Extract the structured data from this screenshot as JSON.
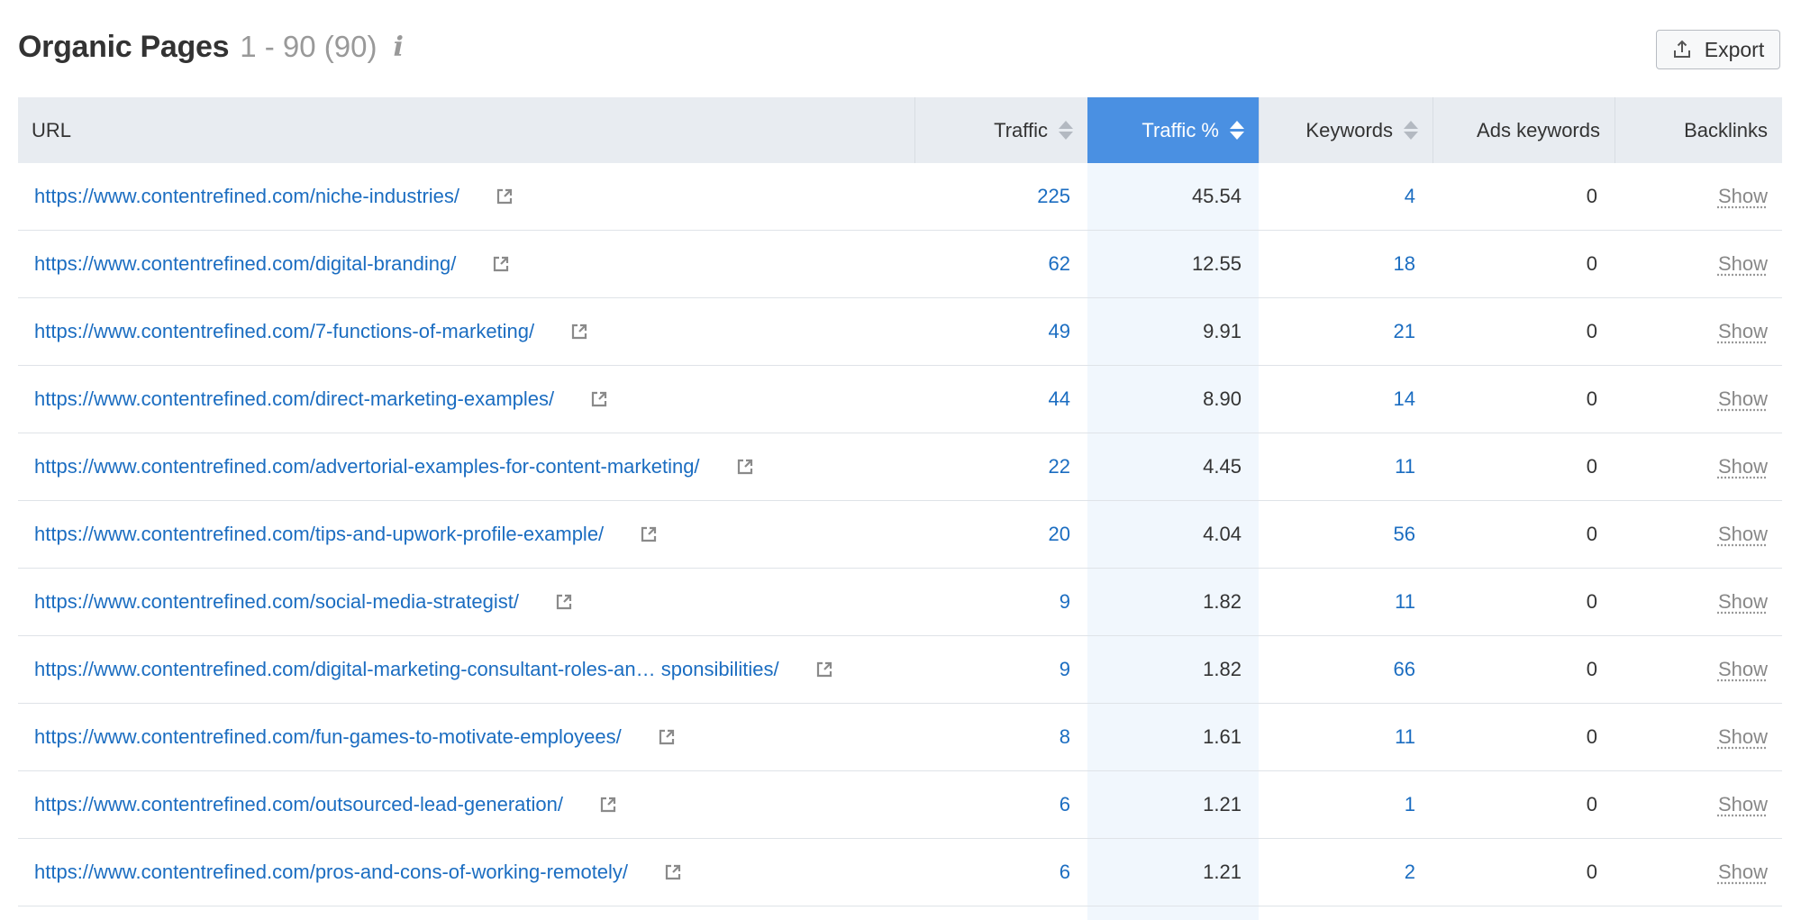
{
  "header": {
    "title": "Organic Pages",
    "range": "1 - 90 (90)",
    "info_icon": "i"
  },
  "toolbar": {
    "export_label": "Export",
    "export_icon": "upload-icon"
  },
  "table": {
    "columns": {
      "url": "URL",
      "traffic": "Traffic",
      "traffic_pct": "Traffic %",
      "keywords": "Keywords",
      "ads_keywords": "Ads keywords",
      "backlinks": "Backlinks"
    },
    "active_sort": "traffic_pct",
    "rows": [
      {
        "url": "https://www.contentrefined.com/niche-industries/",
        "traffic": "225",
        "traffic_pct": "45.54",
        "keywords": "4",
        "ads_keywords": "0",
        "backlinks": "Show"
      },
      {
        "url": "https://www.contentrefined.com/digital-branding/",
        "traffic": "62",
        "traffic_pct": "12.55",
        "keywords": "18",
        "ads_keywords": "0",
        "backlinks": "Show"
      },
      {
        "url": "https://www.contentrefined.com/7-functions-of-marketing/",
        "traffic": "49",
        "traffic_pct": "9.91",
        "keywords": "21",
        "ads_keywords": "0",
        "backlinks": "Show"
      },
      {
        "url": "https://www.contentrefined.com/direct-marketing-examples/",
        "traffic": "44",
        "traffic_pct": "8.90",
        "keywords": "14",
        "ads_keywords": "0",
        "backlinks": "Show"
      },
      {
        "url": "https://www.contentrefined.com/advertorial-examples-for-content-marketing/",
        "traffic": "22",
        "traffic_pct": "4.45",
        "keywords": "11",
        "ads_keywords": "0",
        "backlinks": "Show"
      },
      {
        "url": "https://www.contentrefined.com/tips-and-upwork-profile-example/",
        "traffic": "20",
        "traffic_pct": "4.04",
        "keywords": "56",
        "ads_keywords": "0",
        "backlinks": "Show"
      },
      {
        "url": "https://www.contentrefined.com/social-media-strategist/",
        "traffic": "9",
        "traffic_pct": "1.82",
        "keywords": "11",
        "ads_keywords": "0",
        "backlinks": "Show"
      },
      {
        "url": "https://www.contentrefined.com/digital-marketing-consultant-roles-an… sponsibilities/",
        "traffic": "9",
        "traffic_pct": "1.82",
        "keywords": "66",
        "ads_keywords": "0",
        "backlinks": "Show"
      },
      {
        "url": "https://www.contentrefined.com/fun-games-to-motivate-employees/",
        "traffic": "8",
        "traffic_pct": "1.61",
        "keywords": "11",
        "ads_keywords": "0",
        "backlinks": "Show"
      },
      {
        "url": "https://www.contentrefined.com/outsourced-lead-generation/",
        "traffic": "6",
        "traffic_pct": "1.21",
        "keywords": "1",
        "ads_keywords": "0",
        "backlinks": "Show"
      },
      {
        "url": "https://www.contentrefined.com/pros-and-cons-of-working-remotely/",
        "traffic": "6",
        "traffic_pct": "1.21",
        "keywords": "2",
        "ads_keywords": "0",
        "backlinks": "Show"
      }
    ]
  },
  "colors": {
    "link": "#1b6dc1",
    "active_header": "#4a90e2",
    "header_bg": "#e8ecf1",
    "active_column_bg": "#f1f7fd"
  }
}
